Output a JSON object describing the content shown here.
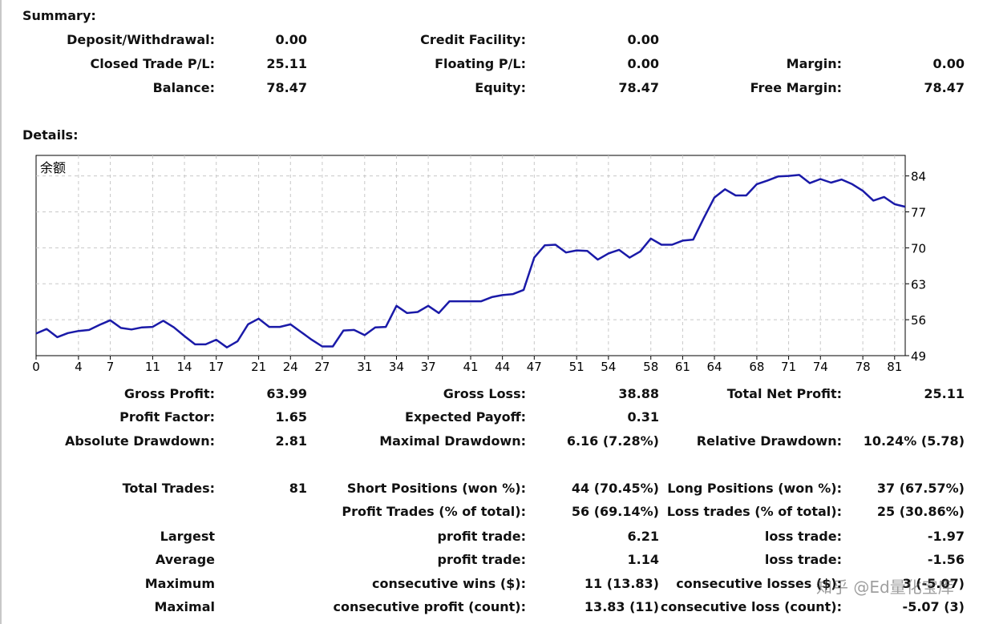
{
  "summary": {
    "title": "Summary:",
    "rows": [
      [
        {
          "label": "Deposit/Withdrawal:",
          "value": "0.00"
        },
        {
          "label": "Credit Facility:",
          "value": "0.00"
        },
        {
          "label": "",
          "value": ""
        }
      ],
      [
        {
          "label": "Closed Trade P/L:",
          "value": "25.11"
        },
        {
          "label": "Floating P/L:",
          "value": "0.00"
        },
        {
          "label": "Margin:",
          "value": "0.00"
        }
      ],
      [
        {
          "label": "Balance:",
          "value": "78.47"
        },
        {
          "label": "Equity:",
          "value": "78.47"
        },
        {
          "label": "Free Margin:",
          "value": "78.47"
        }
      ]
    ]
  },
  "details": {
    "title": "Details:",
    "rows": [
      [
        {
          "label": "Gross Profit:",
          "value": "63.99"
        },
        {
          "label": "Gross Loss:",
          "value": "38.88"
        },
        {
          "label": "Total Net Profit:",
          "value": "25.11"
        }
      ],
      [
        {
          "label": "Profit Factor:",
          "value": "1.65"
        },
        {
          "label": "Expected Payoff:",
          "value": "0.31"
        },
        {
          "label": "",
          "value": ""
        }
      ],
      [
        {
          "label": "Absolute Drawdown:",
          "value": "2.81"
        },
        {
          "label": "Maximal Drawdown:",
          "value": "6.16 (7.28%)"
        },
        {
          "label": "Relative Drawdown:",
          "value": "10.24% (5.78)"
        }
      ],
      [
        {
          "label": "Total Trades:",
          "value": "81"
        },
        {
          "label": "Short Positions (won %):",
          "value": "44 (70.45%)"
        },
        {
          "label": "Long Positions (won %):",
          "value": "37 (67.57%)"
        }
      ],
      [
        {
          "label": "",
          "value": ""
        },
        {
          "label": "Profit Trades (% of total):",
          "value": "56 (69.14%)"
        },
        {
          "label": "Loss trades (% of total):",
          "value": "25 (30.86%)"
        }
      ],
      [
        {
          "label": "Largest",
          "value": ""
        },
        {
          "label": "profit trade:",
          "value": "6.21"
        },
        {
          "label": "loss trade:",
          "value": "-1.97"
        }
      ],
      [
        {
          "label": "Average",
          "value": ""
        },
        {
          "label": "profit trade:",
          "value": "1.14"
        },
        {
          "label": "loss trade:",
          "value": "-1.56"
        }
      ],
      [
        {
          "label": "Maximum",
          "value": ""
        },
        {
          "label": "consecutive wins ($):",
          "value": "11 (13.83)"
        },
        {
          "label": "consecutive losses ($):",
          "value": "3 (-5.07)"
        }
      ],
      [
        {
          "label": "Maximal",
          "value": ""
        },
        {
          "label": "consecutive profit (count):",
          "value": "13.83 (11)"
        },
        {
          "label": "consecutive loss (count):",
          "value": "-5.07 (3)"
        }
      ]
    ]
  },
  "watermark": "知乎 @Ed量化宝库",
  "chart_data": {
    "type": "line",
    "title": "余额",
    "series_color": "#1a1aa8",
    "xlim": [
      0,
      82
    ],
    "ylim": [
      49,
      88
    ],
    "x_ticks": [
      0,
      4,
      7,
      11,
      14,
      17,
      21,
      24,
      27,
      31,
      34,
      37,
      41,
      44,
      47,
      51,
      54,
      58,
      61,
      64,
      68,
      71,
      74,
      78,
      81
    ],
    "y_ticks": [
      49,
      56,
      63,
      70,
      77,
      84
    ],
    "grid": true,
    "y_axis_side": "right",
    "x": [
      0,
      1,
      2,
      3,
      4,
      5,
      6,
      7,
      8,
      9,
      10,
      11,
      12,
      13,
      14,
      15,
      16,
      17,
      18,
      19,
      20,
      21,
      22,
      23,
      24,
      25,
      26,
      27,
      28,
      29,
      30,
      31,
      32,
      33,
      34,
      35,
      36,
      37,
      38,
      39,
      40,
      41,
      42,
      43,
      44,
      45,
      46,
      47,
      48,
      49,
      50,
      51,
      52,
      53,
      54,
      55,
      56,
      57,
      58,
      59,
      60,
      61,
      62,
      63,
      64,
      65,
      66,
      67,
      68,
      69,
      70,
      71,
      72,
      73,
      74,
      75,
      76,
      77,
      78,
      79,
      80,
      81,
      82
    ],
    "values": [
      53.3,
      54.2,
      52.6,
      53.4,
      53.8,
      54.0,
      55.0,
      55.9,
      54.4,
      54.1,
      54.5,
      54.6,
      55.8,
      54.5,
      52.8,
      51.2,
      51.2,
      52.1,
      50.6,
      51.8,
      55.1,
      56.2,
      54.6,
      54.6,
      55.1,
      53.6,
      52.1,
      50.8,
      50.8,
      53.9,
      54.0,
      53.0,
      54.5,
      54.6,
      58.7,
      57.3,
      57.5,
      58.7,
      57.3,
      59.6,
      59.6,
      59.6,
      59.6,
      60.4,
      60.8,
      61.0,
      61.8,
      68.1,
      70.5,
      70.6,
      69.1,
      69.5,
      69.4,
      67.7,
      68.9,
      69.6,
      68.1,
      69.3,
      71.8,
      70.6,
      70.6,
      71.4,
      71.6,
      75.8,
      79.8,
      81.4,
      80.2,
      80.2,
      82.4,
      83.1,
      83.9,
      84.0,
      84.2,
      82.6,
      83.4,
      82.7,
      83.3,
      82.4,
      81.1,
      79.2,
      79.9,
      78.5,
      78.0
    ]
  }
}
